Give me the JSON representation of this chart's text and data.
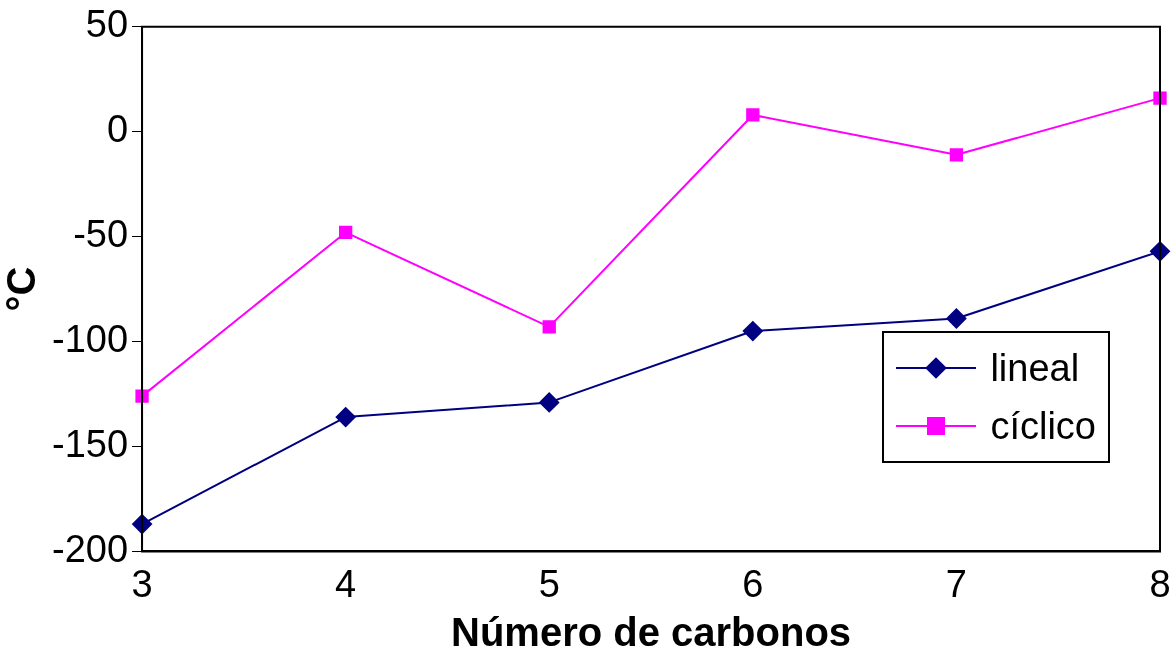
{
  "chart_data": {
    "type": "line",
    "xlabel": "Número de carbonos",
    "ylabel": "°C",
    "categories": [
      "3",
      "4",
      "5",
      "6",
      "7",
      "8"
    ],
    "series": [
      {
        "name": "lineal",
        "color": "#000080",
        "marker": "diamond",
        "values": [
          -187,
          -136,
          -129,
          -95,
          -89,
          -57
        ]
      },
      {
        "name": "cíclico",
        "color": "#ff00ff",
        "marker": "square",
        "values": [
          -126,
          -48,
          -93,
          8,
          -11,
          16
        ]
      }
    ],
    "ylim": [
      -200,
      50
    ],
    "yticks": [
      -200,
      -150,
      -100,
      -50,
      0,
      50
    ],
    "grid": false,
    "legend": "right",
    "line_style": "solid"
  }
}
